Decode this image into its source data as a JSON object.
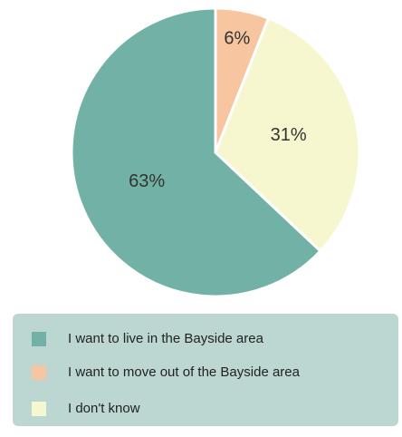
{
  "chart_data": {
    "type": "pie",
    "categories": [
      "I want to live in the Bayside area",
      "I want to move out of the Bayside area",
      "I don't know"
    ],
    "values": [
      63,
      6,
      31
    ],
    "value_labels": [
      "63%",
      "6%",
      "31%"
    ],
    "colors": [
      "#72b2a6",
      "#f7c59f",
      "#f6f6cf"
    ],
    "legend": "bottom"
  }
}
